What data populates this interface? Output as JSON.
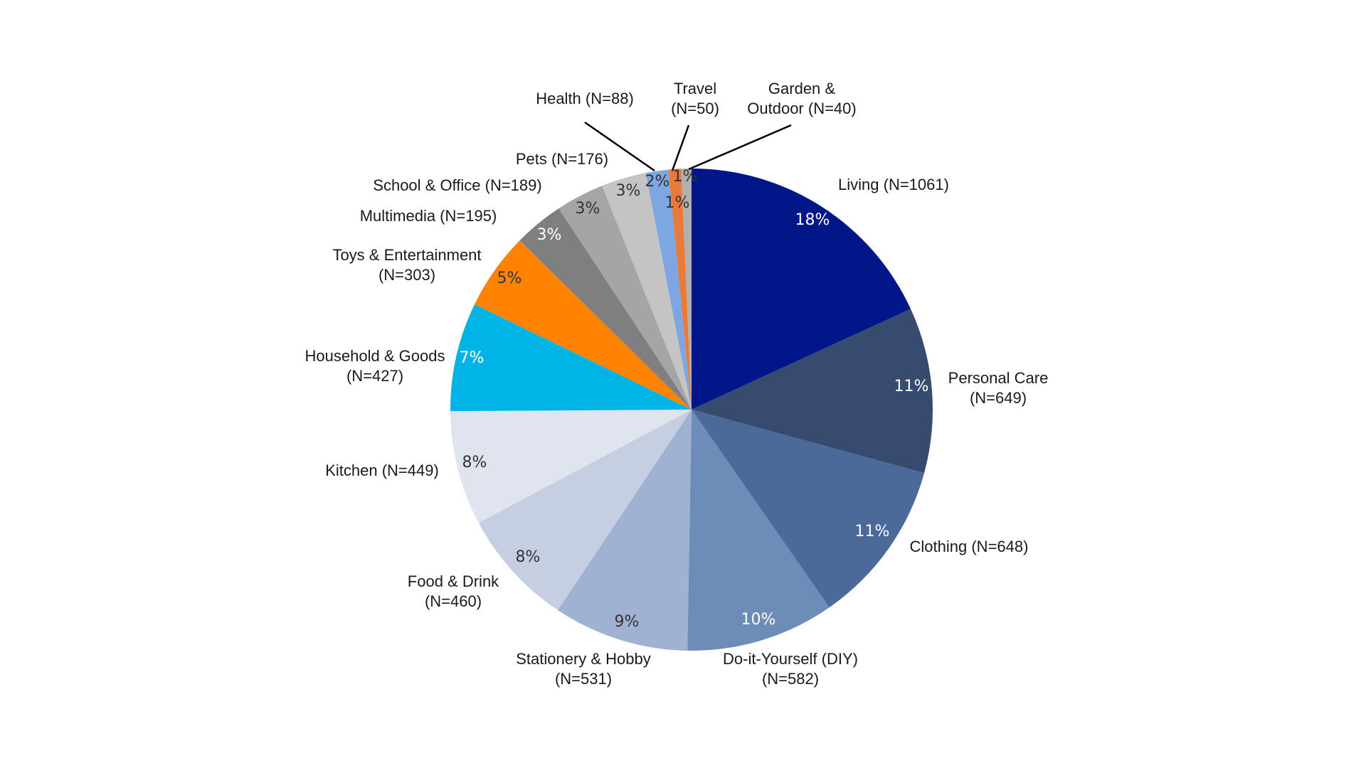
{
  "chart_data": {
    "type": "pie",
    "title": "",
    "slices": [
      {
        "label": "Living (N=1061)",
        "value": 1061,
        "percent_label": "18%",
        "color": "#001689",
        "text_color": "#ffffff"
      },
      {
        "label": "Personal Care (N=649)",
        "value": 649,
        "percent_label": "11%",
        "color": "#364b6e",
        "text_color": "#ffffff"
      },
      {
        "label": "Clothing (N=648)",
        "value": 648,
        "percent_label": "11%",
        "color": "#4b6a99",
        "text_color": "#ffffff"
      },
      {
        "label": "Do-it-Yourself (DIY) (N=582)",
        "value": 582,
        "percent_label": "10%",
        "color": "#6e8cb8",
        "text_color": "#ffffff"
      },
      {
        "label": "Stationery & Hobby (N=531)",
        "value": 531,
        "percent_label": "9%",
        "color": "#9fb2d1",
        "text_color": "#333333"
      },
      {
        "label": "Food & Drink (N=460)",
        "value": 460,
        "percent_label": "8%",
        "color": "#c5cfe1",
        "text_color": "#333333"
      },
      {
        "label": "Kitchen (N=449)",
        "value": 449,
        "percent_label": "8%",
        "color": "#dfe4ee",
        "text_color": "#333333"
      },
      {
        "label": "Household & Goods (N=427)",
        "value": 427,
        "percent_label": "7%",
        "color": "#00b5e6",
        "text_color": "#ffffff"
      },
      {
        "label": "Toys & Entertainment (N=303)",
        "value": 303,
        "percent_label": "5%",
        "color": "#ff8300",
        "text_color": "#333333"
      },
      {
        "label": "Multimedia (N=195)",
        "value": 195,
        "percent_label": "3%",
        "color": "#7f7f7f",
        "text_color": "#ffffff"
      },
      {
        "label": "School & Office (N=189)",
        "value": 189,
        "percent_label": "3%",
        "color": "#a5a5a5",
        "text_color": "#333333"
      },
      {
        "label": "Pets (N=176)",
        "value": 176,
        "percent_label": "3%",
        "color": "#c4c4c4",
        "text_color": "#333333"
      },
      {
        "label": "Health (N=88)",
        "value": 88,
        "percent_label": "2%",
        "color": "#7ea6e0",
        "text_color": "#333333"
      },
      {
        "label": "Travel (N=50)",
        "value": 50,
        "percent_label": "1%",
        "color": "#ea7a3a",
        "text_color": "#333333"
      },
      {
        "label": "Garden & Outdoor (N=40)",
        "value": 40,
        "percent_label": "1%",
        "color": "#b0b0b0",
        "text_color": "#333333"
      }
    ]
  }
}
